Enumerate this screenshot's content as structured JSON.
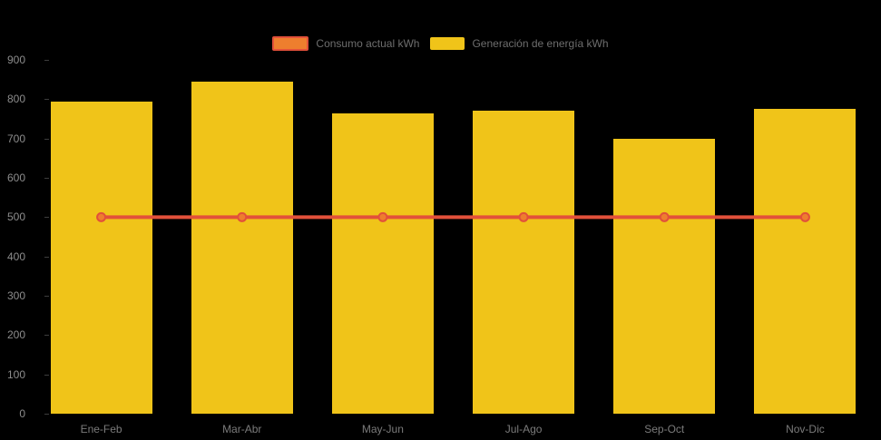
{
  "chart_data": {
    "type": "bar",
    "title": "",
    "categories": [
      "Ene-Feb",
      "Mar-Abr",
      "May-Jun",
      "Jul-Ago",
      "Sep-Oct",
      "Nov-Dic"
    ],
    "series": [
      {
        "name": "Consumo actual kWh",
        "type": "line",
        "values": [
          500,
          500,
          500,
          500,
          500,
          500
        ],
        "line_color": "#e2503a",
        "marker_fill": "#ee7e2e",
        "marker_stroke": "#e2503a"
      },
      {
        "name": "Generación de energía kWh",
        "type": "bar",
        "values": [
          795,
          845,
          763,
          770,
          700,
          775
        ],
        "color": "#f0c419"
      }
    ],
    "xlabel": "",
    "ylabel": "",
    "ylim": [
      0,
      900
    ],
    "yticks": [
      0,
      100,
      200,
      300,
      400,
      500,
      600,
      700,
      800,
      900
    ],
    "grid": false,
    "legend_position": "top-center",
    "background_color": "#000000",
    "axis_label_color": "#8c8c8c",
    "legend_text_color": "#6e6e6e"
  }
}
